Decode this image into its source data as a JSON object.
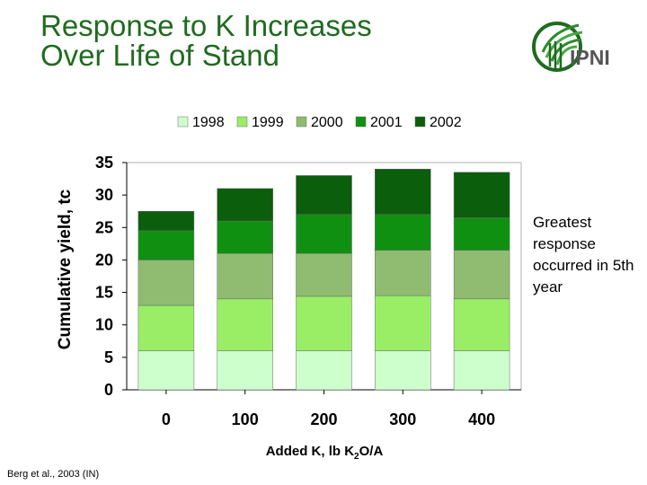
{
  "slide": {
    "title_line1": "Response to K Increases",
    "title_line2": "Over Life of Stand",
    "annotation": "Greatest response occurred in 5th year",
    "footnote": "Berg et al., 2003 (IN)",
    "logo_text": "IPNI"
  },
  "chart_data": {
    "type": "bar",
    "stacked": true,
    "categories": [
      "0",
      "100",
      "200",
      "300",
      "400"
    ],
    "series": [
      {
        "name": "1998",
        "color": "#ccffcc",
        "values": [
          6,
          6,
          6,
          6,
          6
        ]
      },
      {
        "name": "1999",
        "color": "#99ee66",
        "values": [
          7,
          8,
          8.4,
          8.5,
          8
        ]
      },
      {
        "name": "2000",
        "color": "#8fbc70",
        "values": [
          7,
          7,
          6.6,
          7,
          7.5
        ]
      },
      {
        "name": "2001",
        "color": "#109010",
        "values": [
          4.5,
          5,
          6,
          5.5,
          5
        ]
      },
      {
        "name": "2002",
        "color": "#0b5e0b",
        "values": [
          3,
          5,
          6,
          7,
          7
        ]
      }
    ],
    "xlabel": "Added K, lb K",
    "xlabel_sub": "2",
    "xlabel_tail": "O/A",
    "ylabel": "Cumulative yield, tc",
    "ylim": [
      0,
      35
    ],
    "yticks": [
      "0",
      "5",
      "10",
      "15",
      "20",
      "25",
      "30",
      "35"
    ],
    "legend_position": "top",
    "grid": false
  }
}
